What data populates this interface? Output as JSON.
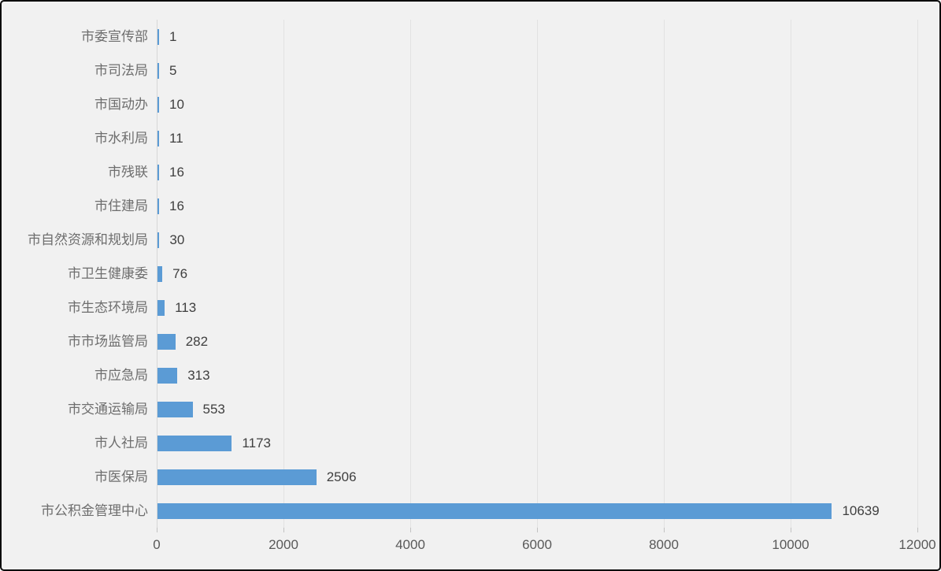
{
  "chart_data": {
    "type": "bar",
    "orientation": "horizontal",
    "title": "",
    "xlabel": "",
    "ylabel": "",
    "categories": [
      "市委宣传部",
      "市司法局",
      "市国动办",
      "市水利局",
      "市残联",
      "市住建局",
      "市自然资源和规划局",
      "市卫生健康委",
      "市生态环境局",
      "市市场监管局",
      "市应急局",
      "市交通运输局",
      "市人社局",
      "市医保局",
      "市公积金管理中心"
    ],
    "values": [
      1,
      5,
      10,
      11,
      16,
      16,
      30,
      76,
      113,
      282,
      313,
      553,
      1173,
      2506,
      10639
    ],
    "data_labels": [
      "1",
      "5",
      "10",
      "11",
      "16",
      "16",
      "30",
      "76",
      "113",
      "282",
      "313",
      "553",
      "1173",
      "2506",
      "10639"
    ],
    "xlim": [
      0,
      12000
    ],
    "x_ticks": [
      0,
      2000,
      4000,
      6000,
      8000,
      10000,
      12000
    ],
    "x_tick_labels": [
      "0",
      "2000",
      "4000",
      "6000",
      "8000",
      "10000",
      "12000"
    ],
    "grid": true,
    "legend": false,
    "data_labels_shown": true
  },
  "colors": {
    "bar": "#5B9BD5",
    "background": "#F1F1F1",
    "frame_border": "#0b0b0b",
    "gridline": "#E2E2E2",
    "axis_line": "#D6D6D6",
    "tick": "#C2C2C2",
    "category_label_text": "#6e6e6e",
    "value_label_text": "#3f3f3f",
    "axis_label_text": "#595959"
  }
}
